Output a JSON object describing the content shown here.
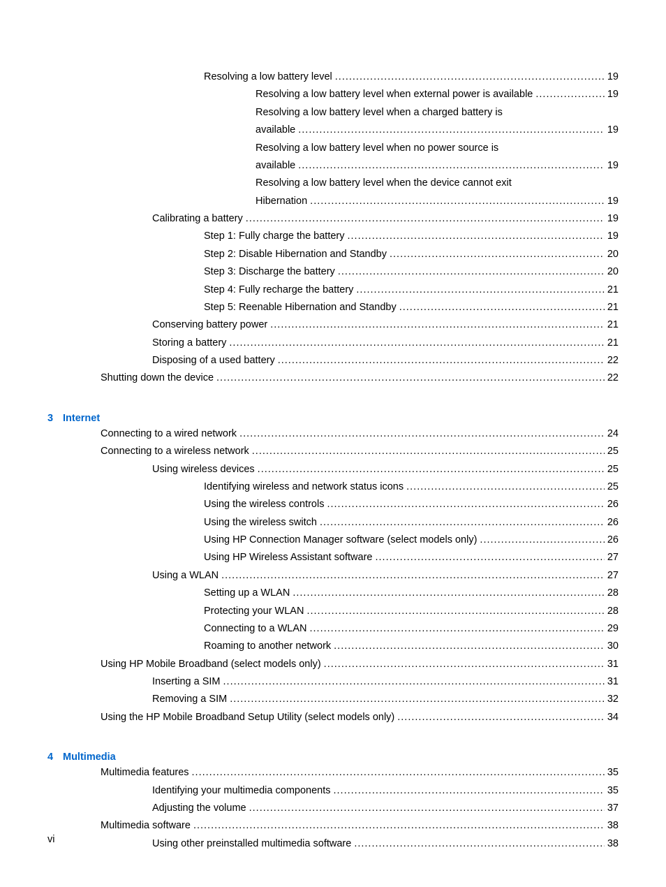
{
  "page_footer": "vi",
  "colors": {
    "text": "#000000",
    "heading": "#0066cc",
    "background": "#ffffff"
  },
  "typography": {
    "font_family": "Arial",
    "font_size_pt": 11,
    "heading_weight": "bold"
  },
  "entries": [
    {
      "type": "item",
      "indent": 2,
      "text": "Resolving a low battery level",
      "page": "19"
    },
    {
      "type": "item",
      "indent": 3,
      "text": "Resolving a low battery level when external power is available",
      "page": "19"
    },
    {
      "type": "wrap",
      "indent": 3,
      "text1": "Resolving a low battery level when a charged battery is",
      "text2": "available",
      "page": "19"
    },
    {
      "type": "wrap",
      "indent": 3,
      "text1": "Resolving a low battery level when no power source is",
      "text2": "available",
      "page": "19"
    },
    {
      "type": "wrap",
      "indent": 3,
      "text1": "Resolving a low battery level when the device cannot exit",
      "text2": "Hibernation",
      "page": "19"
    },
    {
      "type": "item",
      "indent": 1,
      "text": "Calibrating a battery",
      "page": "19"
    },
    {
      "type": "item",
      "indent": 2,
      "text": "Step 1: Fully charge the battery",
      "page": "19"
    },
    {
      "type": "item",
      "indent": 2,
      "text": "Step 2: Disable Hibernation and Standby",
      "page": "20"
    },
    {
      "type": "item",
      "indent": 2,
      "text": "Step 3: Discharge the battery",
      "page": "20"
    },
    {
      "type": "item",
      "indent": 2,
      "text": "Step 4: Fully recharge the battery",
      "page": "21"
    },
    {
      "type": "item",
      "indent": 2,
      "text": "Step 5: Reenable Hibernation and Standby",
      "page": "21"
    },
    {
      "type": "item",
      "indent": 1,
      "text": "Conserving battery power",
      "page": "21"
    },
    {
      "type": "item",
      "indent": 1,
      "text": "Storing a battery",
      "page": "21"
    },
    {
      "type": "item",
      "indent": 1,
      "text": "Disposing of a used battery",
      "page": "22"
    },
    {
      "type": "item",
      "indent": 0,
      "text": "Shutting down the device",
      "page": "22"
    },
    {
      "type": "chapter",
      "num": "3",
      "title": "Internet"
    },
    {
      "type": "item",
      "indent": 0,
      "text": "Connecting to a wired network",
      "page": "24"
    },
    {
      "type": "item",
      "indent": 0,
      "text": "Connecting to a wireless network",
      "page": "25"
    },
    {
      "type": "item",
      "indent": 1,
      "text": "Using wireless devices",
      "page": "25"
    },
    {
      "type": "item",
      "indent": 2,
      "text": "Identifying wireless and network status icons",
      "page": "25"
    },
    {
      "type": "item",
      "indent": 2,
      "text": "Using the wireless controls",
      "page": "26"
    },
    {
      "type": "item",
      "indent": 2,
      "text": "Using the wireless switch",
      "page": "26"
    },
    {
      "type": "item",
      "indent": 2,
      "text": "Using HP Connection Manager software (select models only)",
      "page": "26"
    },
    {
      "type": "item",
      "indent": 2,
      "text": "Using HP Wireless Assistant software",
      "page": "27"
    },
    {
      "type": "item",
      "indent": 1,
      "text": "Using a WLAN",
      "page": "27"
    },
    {
      "type": "item",
      "indent": 2,
      "text": "Setting up a WLAN",
      "page": "28"
    },
    {
      "type": "item",
      "indent": 2,
      "text": "Protecting your WLAN",
      "page": "28"
    },
    {
      "type": "item",
      "indent": 2,
      "text": "Connecting to a WLAN",
      "page": "29"
    },
    {
      "type": "item",
      "indent": 2,
      "text": "Roaming to another network",
      "page": "30"
    },
    {
      "type": "item",
      "indent": 0,
      "text": "Using HP Mobile Broadband (select models only)",
      "page": "31"
    },
    {
      "type": "item",
      "indent": 1,
      "text": "Inserting a SIM",
      "page": "31"
    },
    {
      "type": "item",
      "indent": 1,
      "text": "Removing a SIM",
      "page": "32"
    },
    {
      "type": "item",
      "indent": 0,
      "text": "Using the HP Mobile Broadband Setup Utility (select models only)",
      "page": "34"
    },
    {
      "type": "chapter",
      "num": "4",
      "title": "Multimedia"
    },
    {
      "type": "item",
      "indent": 0,
      "text": "Multimedia features",
      "page": "35"
    },
    {
      "type": "item",
      "indent": 1,
      "text": "Identifying your multimedia components",
      "page": "35"
    },
    {
      "type": "item",
      "indent": 1,
      "text": "Adjusting the volume",
      "page": "37"
    },
    {
      "type": "item",
      "indent": 0,
      "text": "Multimedia software",
      "page": "38"
    },
    {
      "type": "item",
      "indent": 1,
      "text": "Using other preinstalled multimedia software",
      "page": "38"
    }
  ]
}
